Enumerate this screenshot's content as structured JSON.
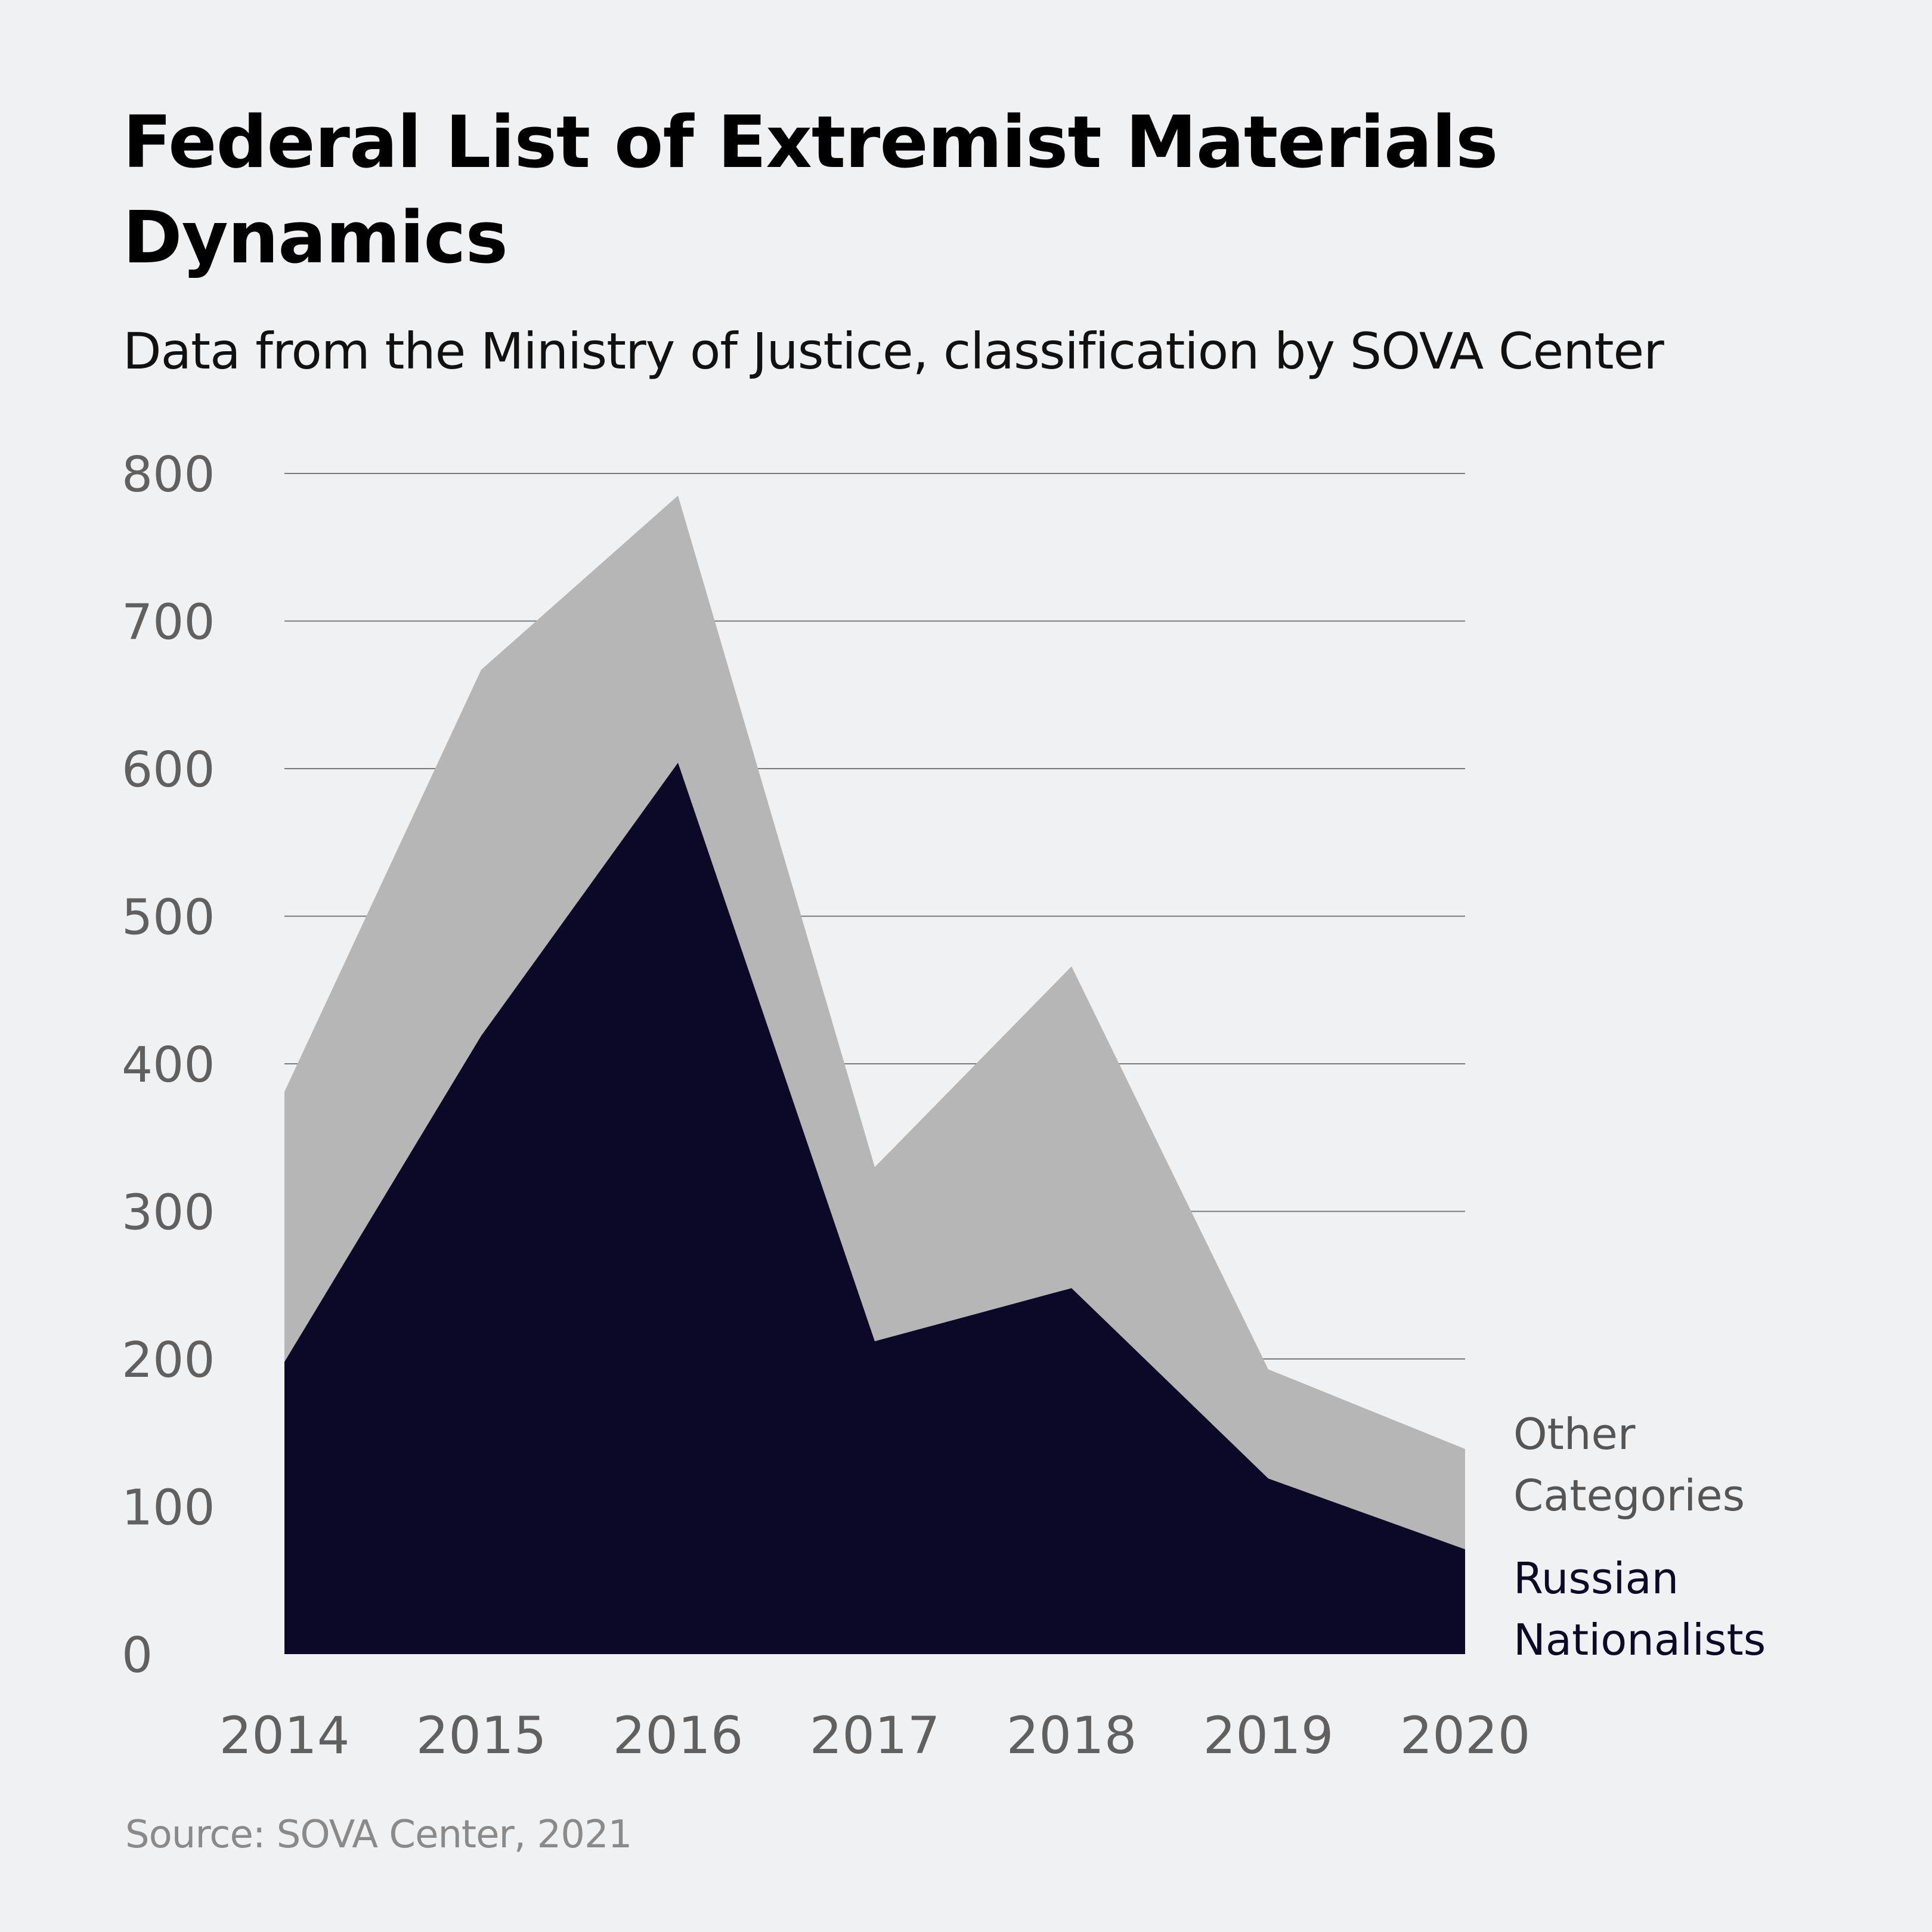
{
  "title": "Federal List of Extremist Materials Dynamics",
  "title_lines": [
    "Federal List of Extremist Materials",
    "Dynamics"
  ],
  "subtitle": "Data from the Ministry of Justice, classification by SOVA Center",
  "source": "Source: SOVA Center, 2021",
  "colors": {
    "background": "#f0f1f3",
    "russian_nationalists": "#0c0828",
    "other_categories": "#b6b6b6",
    "gridline": "#7a7a7a",
    "tick_text": "#606060",
    "other_label": "#555555",
    "rn_label": "#0c0828"
  },
  "chart_data": {
    "type": "area",
    "stacked": true,
    "title": "Federal List of Extremist Materials Dynamics",
    "subtitle": "Data from the Ministry of Justice, classification by SOVA Center",
    "xlabel": "",
    "ylabel": "",
    "categories": [
      "2014",
      "2015",
      "2016",
      "2017",
      "2018",
      "2019",
      "2020"
    ],
    "series": [
      {
        "name": "Russian Nationalists",
        "label_lines": [
          "Russian",
          "Nationalists"
        ],
        "values": [
          198,
          419,
          604,
          212,
          248,
          119,
          71
        ]
      },
      {
        "name": "Other Categories",
        "label_lines": [
          "Other",
          "Categories"
        ],
        "values": [
          183,
          248,
          181,
          118,
          218,
          74,
          68
        ]
      }
    ],
    "totals": [
      381,
      667,
      785,
      330,
      466,
      193,
      139
    ],
    "ylim": [
      0,
      800
    ],
    "yticks": [
      0,
      100,
      200,
      300,
      400,
      500,
      600,
      700,
      800
    ],
    "grid": true,
    "legend": "right-inline"
  }
}
